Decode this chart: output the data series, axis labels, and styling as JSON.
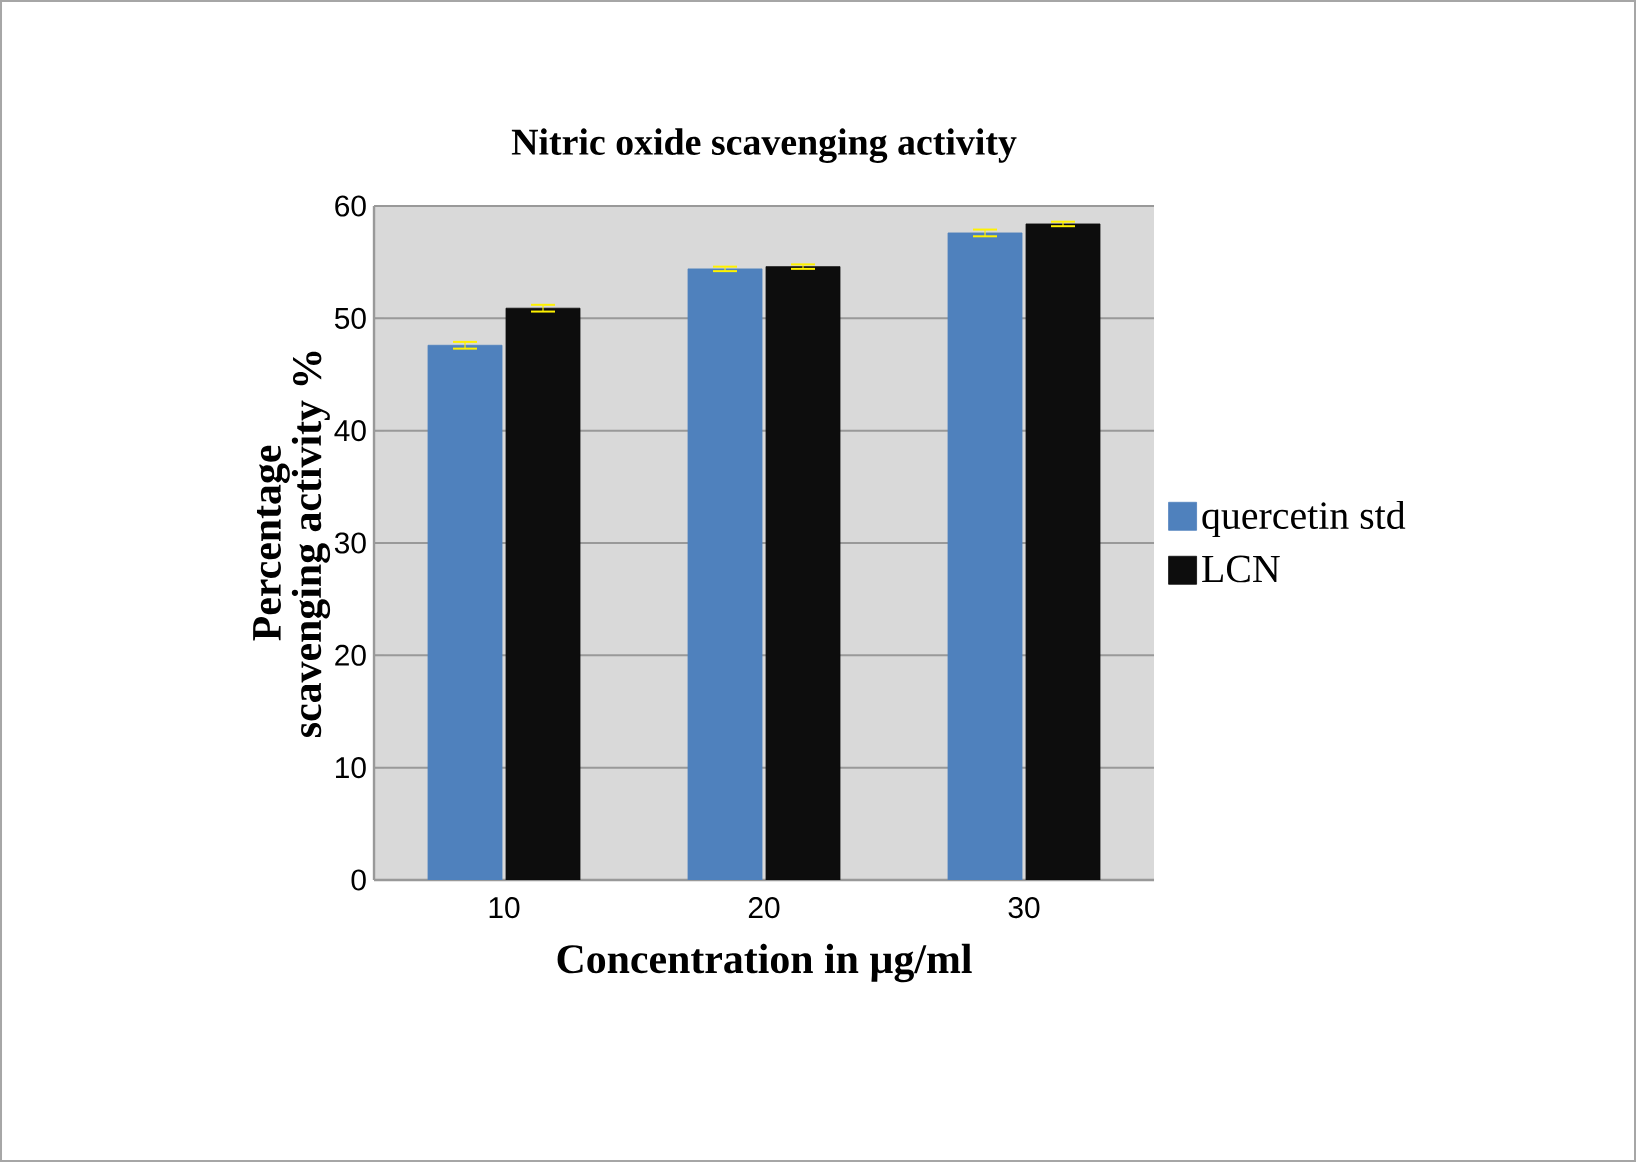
{
  "chart_data": {
    "type": "bar",
    "title": "Nitric oxide scavenging activity",
    "xlabel": "Concentration in µg/ml",
    "ylabel": "Percentage scavenging activity %",
    "categories": [
      "10",
      "20",
      "30"
    ],
    "series": [
      {
        "name": "quercetin std",
        "color": "#4f81bd",
        "values": [
          47.6,
          54.4,
          57.6
        ],
        "errors": [
          0.3,
          0.2,
          0.3
        ]
      },
      {
        "name": "LCN",
        "color": "#0d0d0d",
        "values": [
          50.9,
          54.6,
          58.4
        ],
        "errors": [
          0.3,
          0.2,
          0.2
        ]
      }
    ],
    "ylim": [
      0,
      60
    ],
    "yticks": [
      0,
      10,
      20,
      30,
      40,
      50,
      60
    ],
    "grid": "y",
    "legend": "right"
  }
}
